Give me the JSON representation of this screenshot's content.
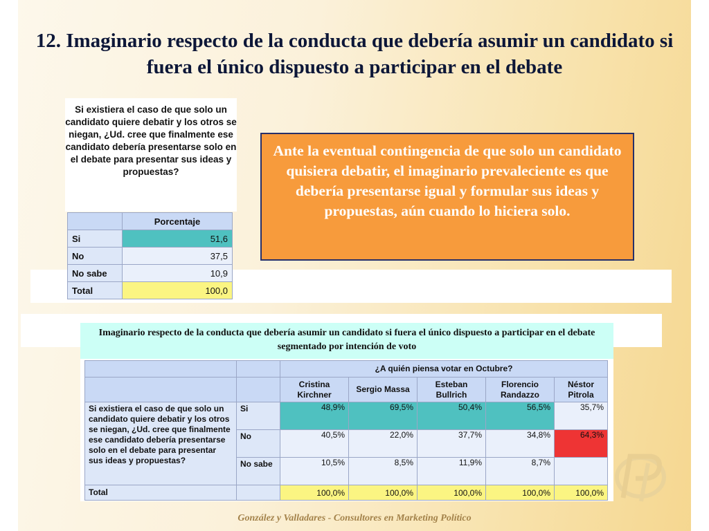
{
  "slide": {
    "title": "12. Imaginario respecto de la conducta que debería asumir un candidato si fuera el único dispuesto a participar en el debate",
    "question": "Si existiera el caso de que solo un candidato quiere debatir y los otros se niegan, ¿Ud. cree que finalmente ese candidato debería presentarse solo en el debate para presentar sus ideas y propuestas?",
    "summary": {
      "column_header": "Porcentaje",
      "rows": [
        {
          "label": "Si",
          "value": "51,6"
        },
        {
          "label": "No",
          "value": "37,5"
        },
        {
          "label": "No sabe",
          "value": "10,9"
        },
        {
          "label": "Total",
          "value": "100,0"
        }
      ]
    },
    "insight": "Ante la eventual contingencia de que solo un candidato quisiera debatir, el imaginario prevaleciente es que debería presentarse igual y formular sus ideas y propuestas, aún cuando lo hiciera solo.",
    "segment_caption": "Imaginario respecto de la conducta que debería asumir un candidato si fuera el único dispuesto a participar en el debate segmentado por intención de voto",
    "crosstab": {
      "group_header": "¿A quién piensa votar en Octubre?",
      "row_question": "Si existiera el caso de que solo un candidato quiere debatir y los otros se niegan, ¿Ud. cree que finalmente ese candidato debería presentarse solo en el debate para presentar sus ideas y propuestas?",
      "columns": [
        "Cristina Kirchner",
        "Sergio Massa",
        "Esteban Bullrich",
        "Florencio Randazzo",
        "Néstor Pitrola"
      ],
      "rows": [
        {
          "label": "Si",
          "values": [
            "48,9%",
            "69,5%",
            "50,4%",
            "56,5%",
            "35,7%"
          ]
        },
        {
          "label": "No",
          "values": [
            "40,5%",
            "22,0%",
            "37,7%",
            "34,8%",
            "64,3%"
          ]
        },
        {
          "label": "No sabe",
          "values": [
            "10,5%",
            "8,5%",
            "11,9%",
            "8,7%",
            ""
          ]
        }
      ],
      "total_label": "Total",
      "totals": [
        "100,0%",
        "100,0%",
        "100,0%",
        "100,0%",
        "100,0%"
      ]
    },
    "footer": "González y Valladares - Consultores en Marketing Político"
  }
}
